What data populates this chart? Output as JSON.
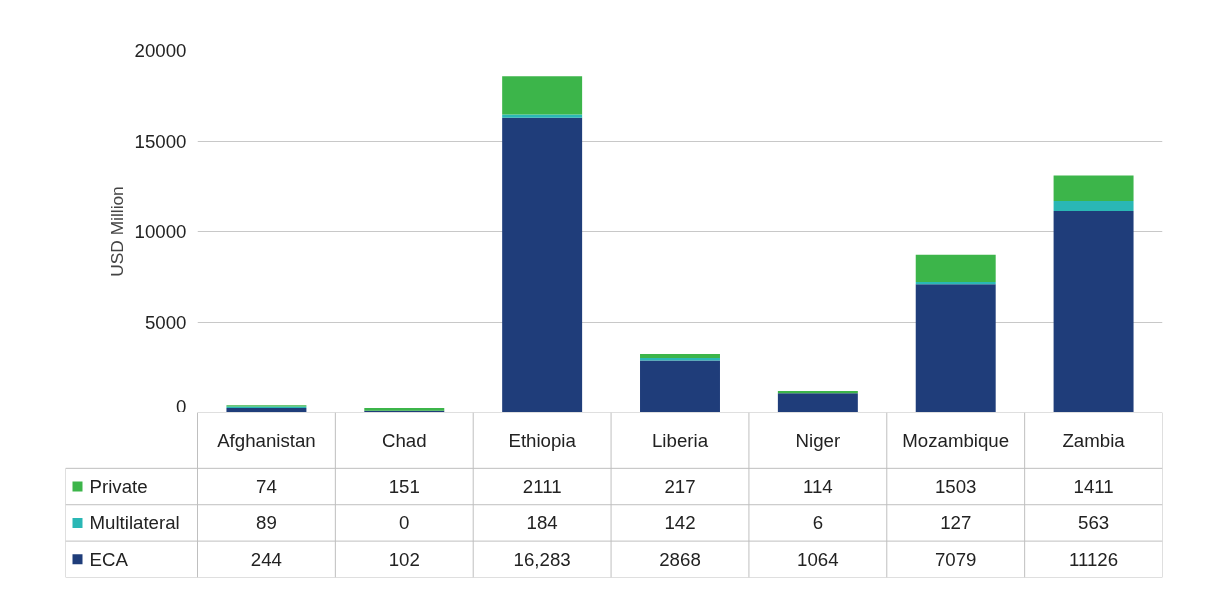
{
  "chart_data": {
    "type": "bar",
    "stacked": true,
    "ylabel": "USD Million",
    "categories": [
      "Afghanistan",
      "Chad",
      "Ethiopia",
      "Liberia",
      "Niger",
      "Mozambique",
      "Zambia"
    ],
    "ylim": [
      0,
      20000
    ],
    "yticks": [
      0,
      5000,
      10000,
      15000,
      20000
    ],
    "grid": "y",
    "legend": "bottom left",
    "series": [
      {
        "name": "ECA",
        "color": "#1f3d7a",
        "values": [
          244,
          102,
          16283,
          2868,
          1064,
          7079,
          11126
        ],
        "value_labels": [
          "244",
          "102",
          "16,283",
          "2868",
          "1064",
          "7079",
          "11126"
        ]
      },
      {
        "name": "Multilateral",
        "color": "#2ab7b5",
        "values": [
          89,
          0,
          184,
          142,
          6,
          127,
          563
        ],
        "value_labels": [
          "89",
          "0",
          "184",
          "142",
          "6",
          "127",
          "563"
        ]
      },
      {
        "name": "Private",
        "color": "#3cb54a",
        "values": [
          74,
          151,
          2111,
          217,
          114,
          1503,
          1411
        ],
        "value_labels": [
          "74",
          "151",
          "2111",
          "217",
          "114",
          "1503",
          "1411"
        ]
      }
    ]
  }
}
